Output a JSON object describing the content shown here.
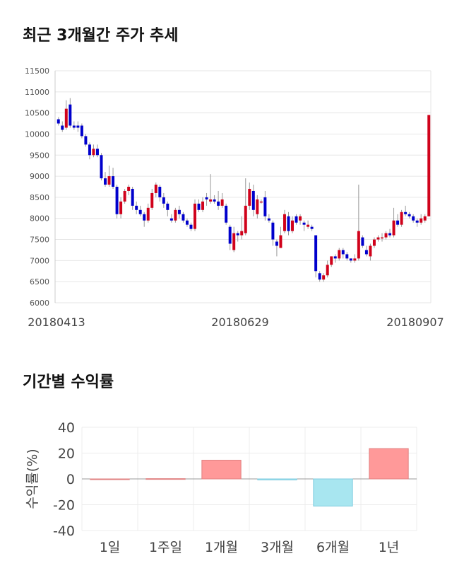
{
  "price_chart": {
    "title": "최근 3개월간 주가 추세",
    "chart_data": {
      "type": "candlestick",
      "ylim": [
        6000,
        11500
      ],
      "yticks": [
        6000,
        6500,
        7000,
        7500,
        8000,
        8500,
        9000,
        9500,
        10000,
        10500,
        11000,
        11500
      ],
      "xlabels": [
        "20180413",
        "20180629",
        "20180907"
      ],
      "grid": true,
      "up_color": "#d0021b",
      "down_color": "#0000cc",
      "candles": [
        [
          10350,
          10250,
          10400,
          10200
        ],
        [
          10200,
          10100,
          10300,
          10050
        ],
        [
          10150,
          10600,
          10800,
          10100
        ],
        [
          10700,
          10200,
          10850,
          10150
        ],
        [
          10200,
          10150,
          10300,
          10100
        ],
        [
          10200,
          10150,
          10300,
          10050
        ],
        [
          10200,
          9950,
          10250,
          9900
        ],
        [
          9950,
          9750,
          10000,
          9700
        ],
        [
          9750,
          9500,
          9800,
          9400
        ],
        [
          9500,
          9650,
          9750,
          9450
        ],
        [
          9650,
          9500,
          9750,
          9450
        ],
        [
          9500,
          8950,
          9550,
          8900
        ],
        [
          8950,
          8800,
          9100,
          8750
        ],
        [
          8800,
          9000,
          9250,
          8750
        ],
        [
          9000,
          8750,
          9200,
          8700
        ],
        [
          8750,
          8100,
          8800,
          8000
        ],
        [
          8100,
          8400,
          8500,
          8000
        ],
        [
          8400,
          8650,
          8700,
          8350
        ],
        [
          8650,
          8750,
          8800,
          8550
        ],
        [
          8700,
          8300,
          8750,
          8200
        ],
        [
          8300,
          8200,
          8400,
          8100
        ],
        [
          8200,
          8100,
          8300,
          8050
        ],
        [
          8100,
          7950,
          8150,
          7800
        ],
        [
          7950,
          8250,
          8350,
          7900
        ],
        [
          8250,
          8600,
          8700,
          8200
        ],
        [
          8600,
          8800,
          8850,
          8500
        ],
        [
          8750,
          8500,
          8800,
          8400
        ],
        [
          8500,
          8350,
          8600,
          8250
        ],
        [
          8350,
          8200,
          8400,
          8050
        ],
        [
          8000,
          7950,
          8100,
          7900
        ],
        [
          7950,
          8200,
          8250,
          7900
        ],
        [
          8200,
          8100,
          8300,
          8000
        ],
        [
          8100,
          7950,
          8150,
          7900
        ],
        [
          7950,
          7850,
          8000,
          7800
        ],
        [
          7850,
          7750,
          7900,
          7700
        ],
        [
          7750,
          8350,
          8450,
          7700
        ],
        [
          8350,
          8200,
          8450,
          8150
        ],
        [
          8200,
          8400,
          8500,
          8150
        ],
        [
          8500,
          8450,
          8600,
          8300
        ],
        [
          8400,
          8450,
          9050,
          8350
        ],
        [
          8450,
          8400,
          8550,
          8350
        ],
        [
          8400,
          8300,
          8650,
          8200
        ],
        [
          8300,
          8450,
          8600,
          8250
        ],
        [
          8300,
          7900,
          8350,
          7850
        ],
        [
          7800,
          7400,
          7850,
          7250
        ],
        [
          7250,
          7650,
          7800,
          7200
        ],
        [
          7650,
          7600,
          7700,
          7450
        ],
        [
          7600,
          7700,
          8050,
          7500
        ],
        [
          7650,
          8300,
          8950,
          7600
        ],
        [
          8300,
          8700,
          8850,
          8200
        ],
        [
          8650,
          8200,
          8800,
          8050
        ],
        [
          8100,
          8450,
          8550,
          8000
        ],
        [
          8400,
          8400,
          8450,
          8350
        ],
        [
          8500,
          8050,
          8650,
          7950
        ],
        [
          8000,
          7950,
          8100,
          7900
        ],
        [
          7900,
          7500,
          7950,
          7350
        ],
        [
          7450,
          7350,
          7500,
          7100
        ],
        [
          7300,
          7600,
          7800,
          7300
        ],
        [
          7700,
          8100,
          8200,
          7650
        ],
        [
          8050,
          7700,
          8150,
          7600
        ],
        [
          7700,
          7950,
          8050,
          7650
        ],
        [
          8050,
          7900,
          8100,
          7850
        ],
        [
          7950,
          8050,
          8100,
          7850
        ],
        [
          7900,
          7850,
          7950,
          7700
        ],
        [
          7800,
          7850,
          7950,
          7750
        ],
        [
          7800,
          7750,
          7850,
          7700
        ],
        [
          7600,
          6750,
          7600,
          6600
        ],
        [
          6700,
          6550,
          6750,
          6500
        ],
        [
          6550,
          6650,
          6700,
          6500
        ],
        [
          6650,
          6900,
          7000,
          6600
        ],
        [
          6900,
          7100,
          7100,
          6850
        ],
        [
          7100,
          7050,
          7150,
          6950
        ],
        [
          7050,
          7250,
          7300,
          7000
        ],
        [
          7250,
          7150,
          7300,
          7050
        ],
        [
          7150,
          7050,
          7200,
          7000
        ],
        [
          7050,
          7000,
          7050,
          6950
        ],
        [
          7000,
          7050,
          7150,
          6950
        ],
        [
          7050,
          7700,
          8800,
          7000
        ],
        [
          7550,
          7350,
          7600,
          7300
        ],
        [
          7250,
          7150,
          7350,
          7100
        ],
        [
          7100,
          7350,
          7400,
          7000
        ],
        [
          7350,
          7500,
          7550,
          7300
        ],
        [
          7500,
          7550,
          7600,
          7450
        ],
        [
          7550,
          7550,
          7650,
          7450
        ],
        [
          7550,
          7650,
          7700,
          7500
        ],
        [
          7650,
          7600,
          7750,
          7550
        ],
        [
          7600,
          7950,
          8250,
          7550
        ],
        [
          7950,
          7850,
          8100,
          7800
        ],
        [
          7850,
          8150,
          8200,
          7800
        ],
        [
          8150,
          8100,
          8300,
          8050
        ],
        [
          8100,
          8050,
          8150,
          8000
        ],
        [
          8050,
          7950,
          8100,
          7900
        ],
        [
          7950,
          7900,
          8000,
          7800
        ],
        [
          7900,
          8000,
          8100,
          7850
        ],
        [
          7950,
          8050,
          8100,
          7900
        ],
        [
          8050,
          10450,
          10450,
          8050
        ]
      ]
    }
  },
  "return_chart": {
    "title": "기간별 수익률",
    "chart_data": {
      "type": "bar",
      "ylabel": "수익률(%)",
      "ylim": [
        -40,
        40
      ],
      "yticks": [
        40,
        20,
        0,
        -20,
        -40
      ],
      "categories": [
        "1일",
        "1주일",
        "1개월",
        "3개월",
        "6개월",
        "1년"
      ],
      "values": [
        0,
        0.2,
        14.5,
        -0.8,
        -21,
        23.5
      ],
      "positive_color": "#ff9999",
      "negative_color": "#a8e6f0",
      "grid": true
    }
  }
}
